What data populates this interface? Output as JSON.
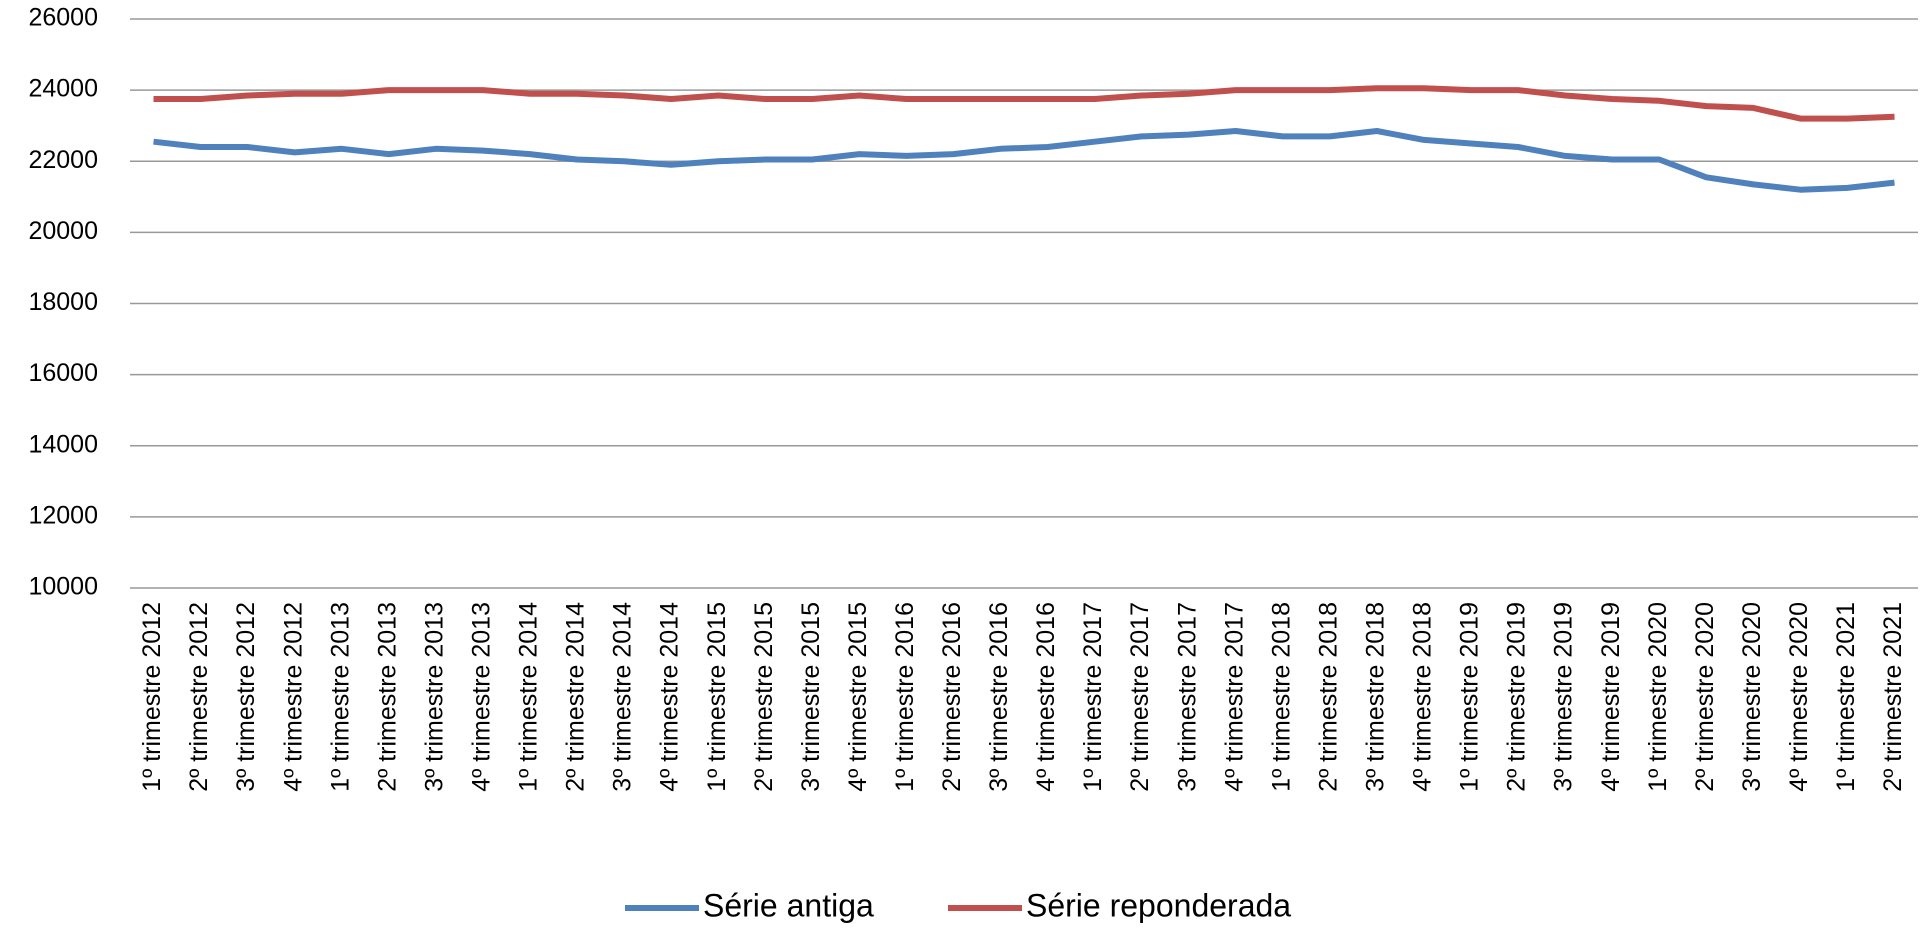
{
  "chart_data": {
    "type": "line",
    "categories": [
      "1º trimestre 2012",
      "2º trimestre 2012",
      "3º trimestre 2012",
      "4º trimestre 2012",
      "1º trimestre 2013",
      "2º trimestre 2013",
      "3º trimestre 2013",
      "4º trimestre 2013",
      "1º trimestre 2014",
      "2º trimestre 2014",
      "3º trimestre 2014",
      "4º trimestre 2014",
      "1º trimestre 2015",
      "2º trimestre 2015",
      "3º trimestre 2015",
      "4º trimestre 2015",
      "1º trimestre 2016",
      "2º trimestre 2016",
      "3º trimestre 2016",
      "4º trimestre 2016",
      "1º trimestre 2017",
      "2º trimestre 2017",
      "3º trimestre 2017",
      "4º trimestre 2017",
      "1º trimestre 2018",
      "2º trimestre 2018",
      "3º trimestre 2018",
      "4º trimestre 2018",
      "1º trimestre 2019",
      "2º trimestre 2019",
      "3º trimestre 2019",
      "4º trimestre 2019",
      "1º trimestre 2020",
      "2º trimestre 2020",
      "3º trimestre 2020",
      "4º trimestre 2020",
      "1º trimestre 2021",
      "2º trimestre 2021"
    ],
    "series": [
      {
        "name": "Série antiga",
        "color": "#4f81bd",
        "values": [
          22550,
          22400,
          22400,
          22250,
          22350,
          22200,
          22350,
          22300,
          22200,
          22050,
          22000,
          21900,
          22000,
          22050,
          22050,
          22200,
          22150,
          22200,
          22350,
          22400,
          22550,
          22700,
          22750,
          22850,
          22700,
          22700,
          22850,
          22600,
          22500,
          22400,
          22150,
          22050,
          22050,
          21550,
          21350,
          21200,
          21250,
          21400
        ]
      },
      {
        "name": "Série reponderada",
        "color": "#c0504d",
        "values": [
          23750,
          23750,
          23850,
          23900,
          23900,
          24000,
          24000,
          24000,
          23900,
          23900,
          23850,
          23750,
          23850,
          23750,
          23750,
          23850,
          23750,
          23750,
          23750,
          23750,
          23750,
          23850,
          23900,
          24000,
          24000,
          24000,
          24050,
          24050,
          24000,
          24000,
          23850,
          23750,
          23700,
          23550,
          23500,
          23200,
          23200,
          23250
        ]
      }
    ],
    "ylim": [
      10000,
      26000
    ],
    "yticks": [
      10000,
      12000,
      14000,
      16000,
      18000,
      20000,
      22000,
      24000,
      26000
    ],
    "grid": true,
    "legend": "bottom"
  }
}
